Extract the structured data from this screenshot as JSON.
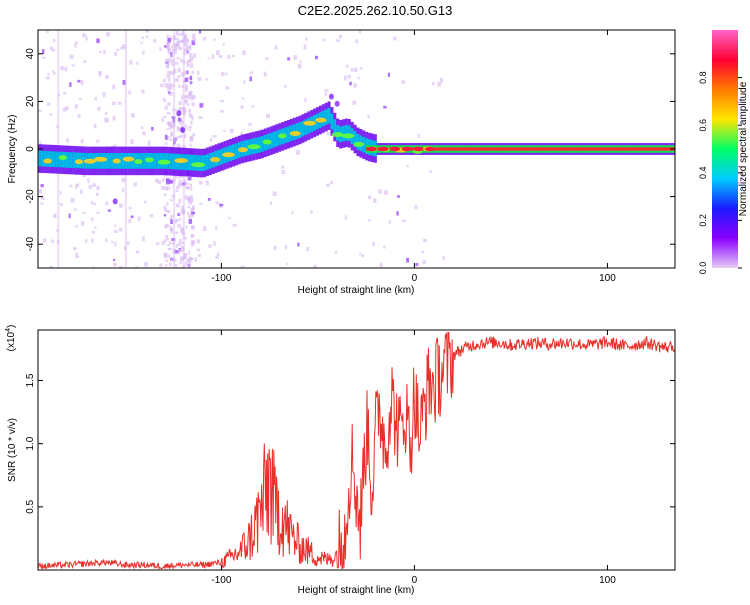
{
  "title": "C2E2.2025.262.10.50.G13",
  "chart_data": [
    {
      "type": "heatmap",
      "xlabel": "Height of straight line (km)",
      "ylabel": "Frequency (Hz)",
      "xlim": [
        -195,
        135
      ],
      "ylim": [
        -50,
        50
      ],
      "xticks": [
        -100,
        0,
        100
      ],
      "yticks": [
        -40,
        -20,
        0,
        20,
        40
      ],
      "colorbar": {
        "label": "Normalized spectral amplitude",
        "range": [
          0,
          1
        ],
        "ticks": [
          "0.0",
          "0.2",
          "0.4",
          "0.6",
          "0.8"
        ],
        "colors": [
          "#e8ccf5",
          "#8a00ff",
          "#1a1aff",
          "#00ccff",
          "#00ff66",
          "#ffe600",
          "#ff7a00",
          "#ff0033",
          "#ff66cc"
        ]
      },
      "ridge": {
        "note_values": "dominant frequency (Hz) vs height (km)",
        "x": [
          -195,
          -170,
          -150,
          -130,
          -110,
          -100,
          -90,
          -80,
          -70,
          -60,
          -50,
          -45,
          -40,
          -35,
          -30,
          -25,
          -20,
          -10,
          0,
          10,
          20,
          60,
          100,
          135
        ],
        "y": [
          -4,
          -5,
          -5,
          -5,
          -6,
          -3,
          0,
          2,
          5,
          8,
          12,
          14,
          6,
          7,
          3,
          1,
          0,
          0,
          0,
          0,
          0,
          0,
          0,
          0
        ]
      }
    },
    {
      "type": "line",
      "xlabel": "Height of straight line (km)",
      "ylabel": "SNR (10 * v/v)",
      "yscale_label": "(x10",
      "yscale_exp": "4",
      "xlim": [
        -195,
        135
      ],
      "ylim": [
        0,
        1.9
      ],
      "xticks": [
        -100,
        0,
        100
      ],
      "yticks": [
        "0.5",
        "1.0",
        "1.5"
      ],
      "color": "#e8302a",
      "series": [
        {
          "x": [
            -195,
            -180,
            -170,
            -160,
            -150,
            -140,
            -130,
            -120,
            -110,
            -100,
            -95,
            -90,
            -85,
            -80,
            -77,
            -75,
            -72,
            -70,
            -65,
            -60,
            -55,
            -50,
            -45,
            -40,
            -36,
            -34,
            -32,
            -30,
            -28,
            -26,
            -24,
            -22,
            -20,
            -18,
            -15,
            -12,
            -10,
            -7,
            -5,
            -2,
            0,
            3,
            5,
            8,
            10,
            13,
            15,
            18,
            20,
            25,
            30,
            35,
            40,
            45,
            50,
            60,
            70,
            80,
            90,
            100,
            110,
            120,
            130,
            135
          ],
          "y": [
            0.03,
            0.04,
            0.05,
            0.06,
            0.04,
            0.04,
            0.03,
            0.04,
            0.04,
            0.06,
            0.1,
            0.15,
            0.25,
            0.45,
            0.6,
            0.75,
            0.45,
            0.5,
            0.3,
            0.2,
            0.15,
            0.1,
            0.08,
            0.12,
            0.3,
            0.7,
            0.9,
            0.6,
            0.35,
            0.9,
            1.15,
            0.6,
            1.1,
            1.3,
            0.95,
            1.4,
            1.2,
            1.05,
            1.3,
            1.0,
            1.4,
            1.05,
            1.3,
            1.5,
            1.45,
            1.55,
            1.6,
            1.65,
            1.7,
            1.75,
            1.78,
            1.8,
            1.8,
            1.8,
            1.78,
            1.8,
            1.79,
            1.8,
            1.78,
            1.8,
            1.77,
            1.8,
            1.76,
            1.78
          ]
        }
      ]
    }
  ]
}
